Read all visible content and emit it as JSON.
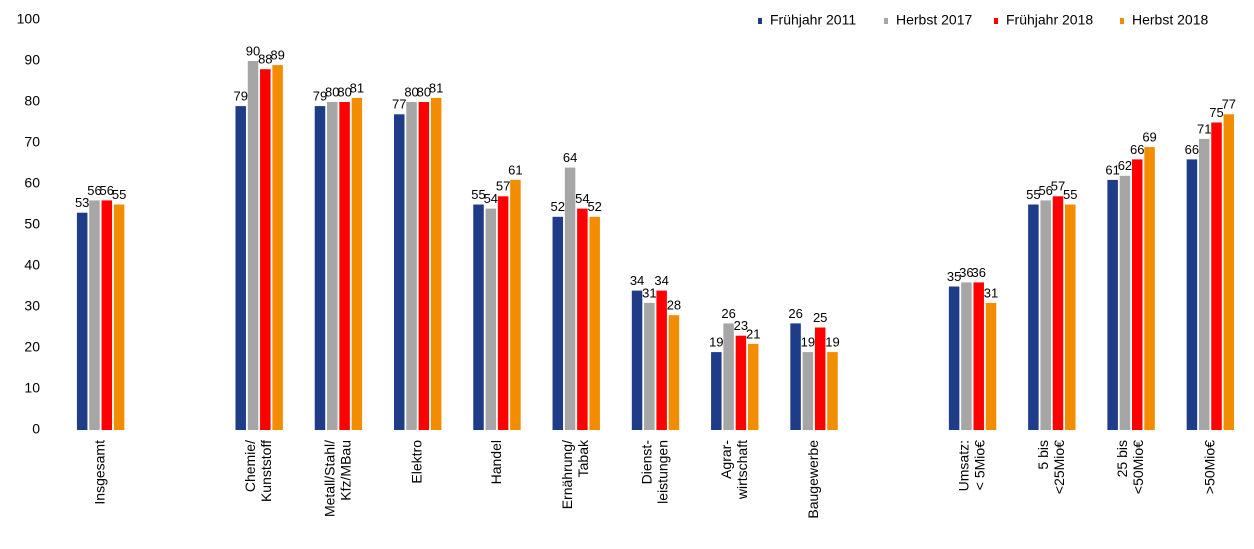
{
  "chart_data": {
    "type": "bar",
    "categories": [
      "Insgesamt",
      null,
      "Chemie/\nKunststoff",
      "Metall/Stahl/\nKfz/MBau",
      "Elektro",
      "Handel",
      "Ernährung/\nTabak",
      "Dienst-\nleistungen",
      "Agrar-\nwirtschaft",
      "Baugewerbe",
      null,
      "Umsatz:\n< 5Mio€",
      "5 bis\n<25Mio€",
      "25 bis\n<50Mio€",
      ">50Mio€"
    ],
    "series": [
      {
        "name": "Frühjahr 2011",
        "color": "#1f3c88",
        "values": [
          53,
          null,
          79,
          79,
          77,
          55,
          52,
          34,
          19,
          26,
          null,
          35,
          55,
          61,
          66
        ]
      },
      {
        "name": "Herbst 2017",
        "color": "#a6a6a6",
        "values": [
          56,
          null,
          90,
          80,
          80,
          54,
          64,
          31,
          26,
          19,
          null,
          36,
          56,
          62,
          71
        ]
      },
      {
        "name": "Frühjahr 2018",
        "color": "#ff0000",
        "values": [
          56,
          null,
          88,
          80,
          80,
          57,
          54,
          34,
          23,
          25,
          null,
          36,
          57,
          66,
          75
        ]
      },
      {
        "name": "Herbst 2018",
        "color": "#f28c00",
        "values": [
          55,
          null,
          89,
          81,
          81,
          61,
          52,
          28,
          21,
          19,
          null,
          31,
          55,
          69,
          77
        ]
      }
    ],
    "ylim": [
      0,
      100
    ],
    "yticks": [
      0,
      10,
      20,
      30,
      40,
      50,
      60,
      70,
      80,
      90,
      100
    ],
    "grid": false,
    "legend": "top-right"
  }
}
